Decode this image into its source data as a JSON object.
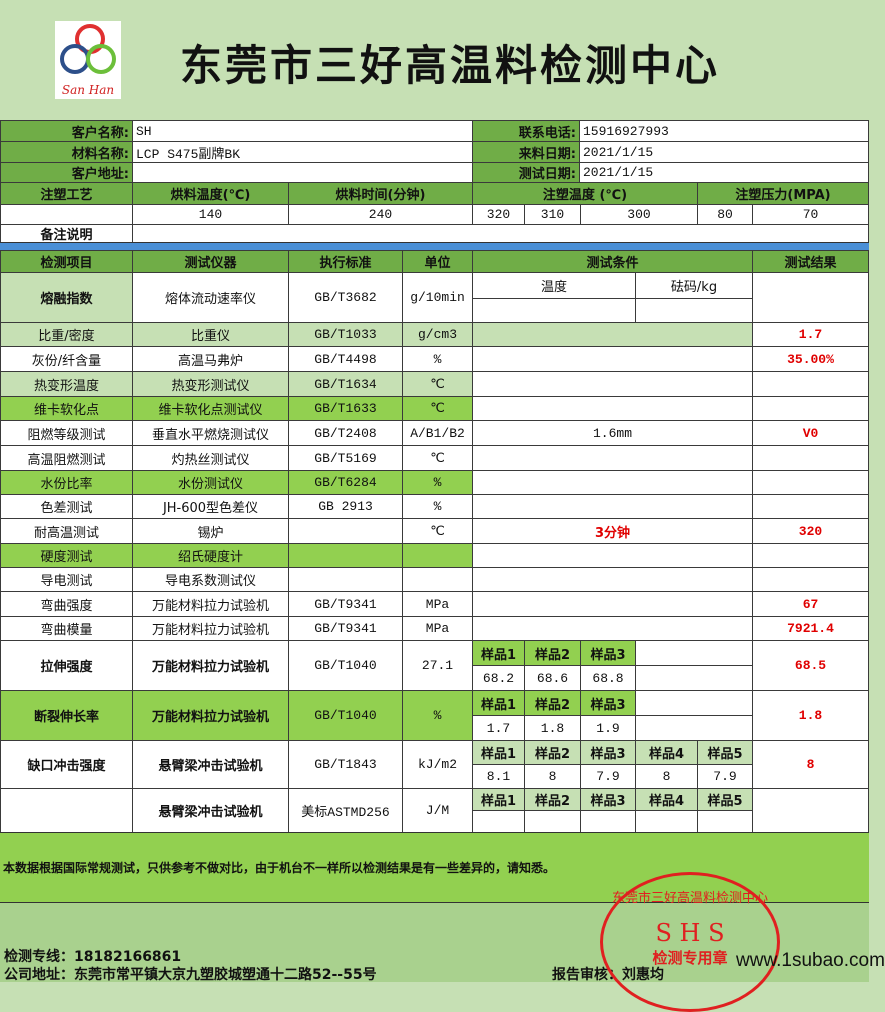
{
  "header": {
    "title": "东莞市三好高温料检测中心",
    "logo_text": "San Han"
  },
  "info": {
    "customer_name_label": "客户名称:",
    "customer_name": "SH",
    "material_label": "材料名称:",
    "material": "LCP S475副牌BK",
    "address_label": "客户地址:",
    "address": "",
    "phone_label": "联系电话:",
    "phone": "15916927993",
    "arrival_label": "来料日期:",
    "arrival_date": "2021/1/15",
    "test_date_label": "测试日期:",
    "test_date": "2021/1/15"
  },
  "molding": {
    "headers": [
      "注塑工艺",
      "烘料温度(℃)",
      "烘料时间(分钟)",
      "注塑温度 (℃)",
      "注塑压力(MPA)"
    ],
    "drying_temp": "140",
    "drying_time": "240",
    "inj_temps": [
      "320",
      "310",
      "300"
    ],
    "pressures": [
      "80",
      "70"
    ],
    "remark_label": "备注说明"
  },
  "table": {
    "headers": [
      "检测项目",
      "测试仪器",
      "执行标准",
      "单位",
      "测试条件",
      "测试结果"
    ],
    "melt": {
      "item": "熔融指数",
      "instrument": "熔体流动速率仪",
      "standard": "GB/T3682",
      "unit": "g/10min",
      "cond_temp": "温度",
      "cond_weight": "砝码/kg",
      "result": ""
    },
    "rows": [
      {
        "item": "比重/密度",
        "instrument": "比重仪",
        "standard": "GB/T1033",
        "unit": "g/cm3",
        "condition": "",
        "result": "1.7",
        "highlight": "light",
        "cond_highlight": "light"
      },
      {
        "item": "灰份/纤含量",
        "instrument": "高温马弗炉",
        "standard": "GB/T4498",
        "unit": "%",
        "condition": "",
        "result": "35.00%",
        "highlight": "none"
      },
      {
        "item": "热变形温度",
        "instrument": "热变形测试仪",
        "standard": "GB/T1634",
        "unit": "℃",
        "condition": "",
        "result": "",
        "highlight": "light"
      },
      {
        "item": "维卡软化点",
        "instrument": "维卡软化点测试仪",
        "standard": "GB/T1633",
        "unit": "℃",
        "condition": "",
        "result": "",
        "highlight": "bright"
      },
      {
        "item": "阻燃等级测试",
        "instrument": "垂直水平燃烧测试仪",
        "standard": "GB/T2408",
        "unit": "A/B1/B2",
        "condition": "1.6mm",
        "result": "V0",
        "highlight": "none"
      },
      {
        "item": "高温阻燃测试",
        "instrument": "灼热丝测试仪",
        "standard": "GB/T5169",
        "unit": "℃",
        "condition": "",
        "result": "",
        "highlight": "none"
      },
      {
        "item": "水份比率",
        "instrument": "水份测试仪",
        "standard": "GB/T6284",
        "unit": "%",
        "condition": "",
        "result": "",
        "highlight": "bright"
      },
      {
        "item": "色差测试",
        "instrument": "JH-600型色差仪",
        "standard": "GB 2913",
        "unit": "%",
        "condition": "",
        "result": "",
        "highlight": "none"
      },
      {
        "item": "耐高温测试",
        "instrument": "锡炉",
        "standard": "",
        "unit": "℃",
        "condition": "3分钟",
        "result": "320",
        "highlight": "none",
        "cond_red": true
      },
      {
        "item": "硬度测试",
        "instrument": "绍氏硬度计",
        "standard": "",
        "unit": "",
        "condition": "",
        "result": "",
        "highlight": "bright"
      },
      {
        "item": "导电测试",
        "instrument": "导电系数测试仪",
        "standard": "",
        "unit": "",
        "condition": "",
        "result": "",
        "highlight": "none"
      },
      {
        "item": "弯曲强度",
        "instrument": "万能材料拉力试验机",
        "standard": "GB/T9341",
        "unit": "MPa",
        "condition": "",
        "result": "67",
        "highlight": "none"
      },
      {
        "item": "弯曲模量",
        "instrument": "万能材料拉力试验机",
        "standard": "GB/T9341",
        "unit": "MPa",
        "condition": "",
        "result": "7921.4",
        "highlight": "none"
      }
    ],
    "tensile": {
      "item": "拉伸强度",
      "instrument": "万能材料拉力试验机",
      "standard": "GB/T1040",
      "unit": "27.1",
      "samples": [
        "样品1",
        "样品2",
        "样品3"
      ],
      "values": [
        "68.2",
        "68.6",
        "68.8"
      ],
      "result": "68.5"
    },
    "elongation": {
      "item": "断裂伸长率",
      "instrument": "万能材料拉力试验机",
      "standard": "GB/T1040",
      "unit": "%",
      "samples": [
        "样品1",
        "样品2",
        "样品3"
      ],
      "values": [
        "1.7",
        "1.8",
        "1.9"
      ],
      "result": "1.8"
    },
    "impact": {
      "item": "缺口冲击强度",
      "instrument": "悬臂梁冲击试验机",
      "standard": "GB/T1843",
      "unit": "kJ/m2",
      "samples": [
        "样品1",
        "样品2",
        "样品3",
        "样品4",
        "样品5"
      ],
      "values": [
        "8.1",
        "8",
        "7.9",
        "8",
        "7.9"
      ],
      "result": "8"
    },
    "izod": {
      "item": "",
      "instrument": "悬臂梁冲击试验机",
      "standard": "美标ASTMD256",
      "unit": "J/M",
      "samples": [
        "样品1",
        "样品2",
        "样品3",
        "样品4",
        "样品5"
      ],
      "values": [
        "",
        "",
        "",
        "",
        ""
      ],
      "result": ""
    }
  },
  "note": "本数据根据国际常规测试，只供参考不做对比，由于机台不一样所以检测结果是有一些差异的，请知悉。",
  "footer": {
    "hotline": "检测专线：18182166861",
    "address": "公司地址：东莞市常平镇大京九塑胶城塑通十二路52--55号",
    "reviewer": "报告审核：刘惠均"
  },
  "stamp": {
    "ring_text": "东莞市三好高温料检测中心",
    "center": "S H S",
    "bottom": "检测专用章"
  },
  "watermark": "www.1subao.com",
  "colors": {
    "header_green": "#70ad47",
    "bright_green": "#92d050",
    "light_green": "#c6e0b4",
    "result_red": "#e00000",
    "band_blue": "#4a8fd6"
  }
}
